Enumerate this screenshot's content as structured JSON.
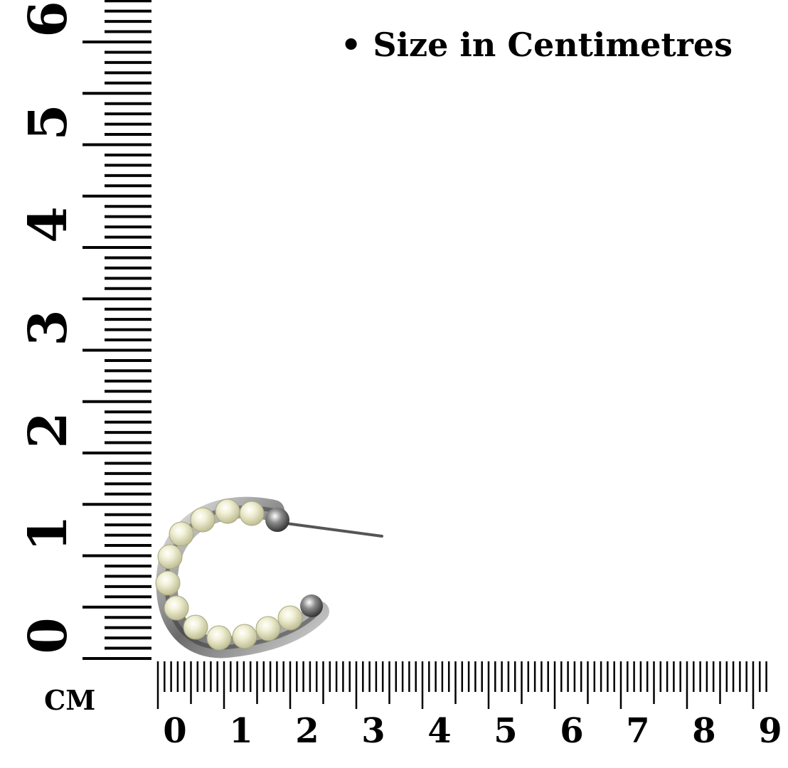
{
  "caption": "• Size in Centimetres",
  "unit_label": "CM",
  "vertical_ruler": {
    "labels": [
      "0",
      "1",
      "2",
      "3",
      "4",
      "5",
      "6"
    ]
  },
  "horizontal_ruler": {
    "labels": [
      "0",
      "1",
      "2",
      "3",
      "4",
      "5",
      "6",
      "7",
      "8",
      "9"
    ]
  },
  "product": {
    "name": "pearl-hoop-earring",
    "pearl_color": "#eeeccc",
    "metal_color": "#b8b8b8"
  }
}
